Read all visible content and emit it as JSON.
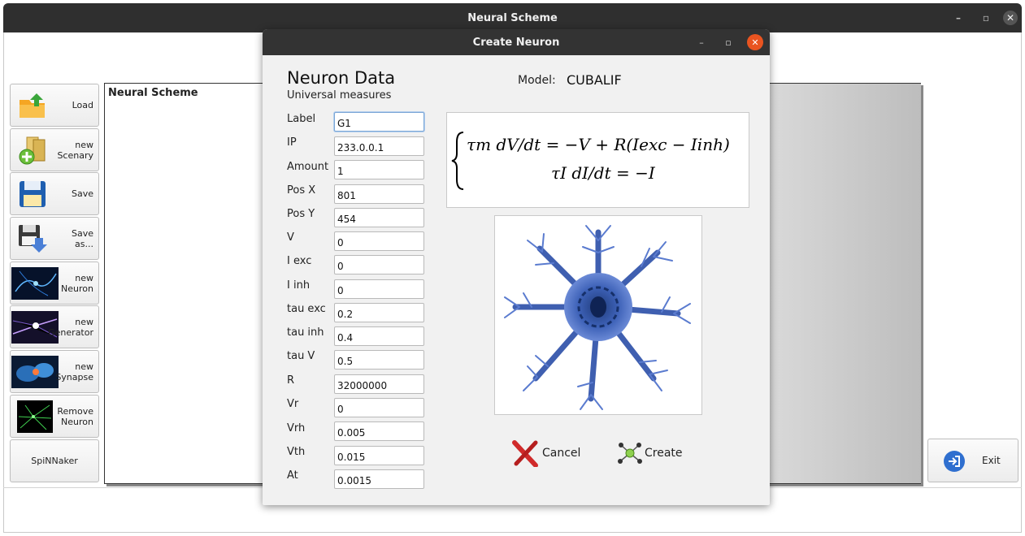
{
  "main_window": {
    "title": "Neural Scheme",
    "controls": [
      "minimize",
      "maximize",
      "close"
    ]
  },
  "toolbar": [
    {
      "name": "load-button",
      "lines": [
        "Load"
      ],
      "icon": "folder-upload-icon"
    },
    {
      "name": "new-scenary-button",
      "lines": [
        "new",
        "Scenary"
      ],
      "icon": "new-file-icon"
    },
    {
      "name": "save-button",
      "lines": [
        "Save"
      ],
      "icon": "floppy-disk-icon"
    },
    {
      "name": "save-as-button",
      "lines": [
        "Save",
        "as..."
      ],
      "icon": "save-as-icon"
    },
    {
      "name": "new-neuron-button",
      "lines": [
        "new",
        "Neuron"
      ],
      "icon": "neuron-image-icon"
    },
    {
      "name": "new-generator-button",
      "lines": [
        "new",
        "Generator"
      ],
      "icon": "generator-image-icon"
    },
    {
      "name": "new-synapse-button",
      "lines": [
        "new",
        "Synapse"
      ],
      "icon": "synapse-image-icon"
    },
    {
      "name": "remove-neuron-button",
      "lines": [
        "Remove",
        "Neuron"
      ],
      "icon": "remove-neuron-image-icon"
    },
    {
      "name": "spinnaker-button",
      "lines": [
        "SpiNNaker"
      ],
      "icon": ""
    }
  ],
  "scheme": {
    "title": "Neural Scheme"
  },
  "exit": {
    "label": "Exit",
    "icon": "exit-door-icon"
  },
  "dialog": {
    "title": "Create Neuron",
    "heading": "Neuron Data",
    "subheading": "Universal measures",
    "model_label": "Model:",
    "model_value": "CUBALIF",
    "equation": {
      "line1": "τm dV/dt = −V + R(Iexc − Iinh)",
      "line2": "τI dI/dt = −I"
    },
    "fields": [
      {
        "label": "Label",
        "value": "G1"
      },
      {
        "label": "IP",
        "value": "233.0.0.1"
      },
      {
        "label": "Amount",
        "value": "1"
      },
      {
        "label": "Pos X",
        "value": "801"
      },
      {
        "label": "Pos Y",
        "value": "454"
      },
      {
        "label": "V",
        "value": "0"
      },
      {
        "label": "I exc",
        "value": "0"
      },
      {
        "label": "I inh",
        "value": "0"
      },
      {
        "label": "tau exc",
        "value": "0.2"
      },
      {
        "label": "tau inh",
        "value": "0.4"
      },
      {
        "label": "tau V",
        "value": "0.5"
      },
      {
        "label": "R",
        "value": "32000000"
      },
      {
        "label": "Vr",
        "value": "0"
      },
      {
        "label": "Vrh",
        "value": "0.005"
      },
      {
        "label": "Vth",
        "value": "0.015"
      },
      {
        "label": "At",
        "value": "0.0015"
      }
    ],
    "buttons": {
      "cancel": "Cancel",
      "create": "Create"
    },
    "image": "neuron-cell-image",
    "accent": "#e95420"
  }
}
